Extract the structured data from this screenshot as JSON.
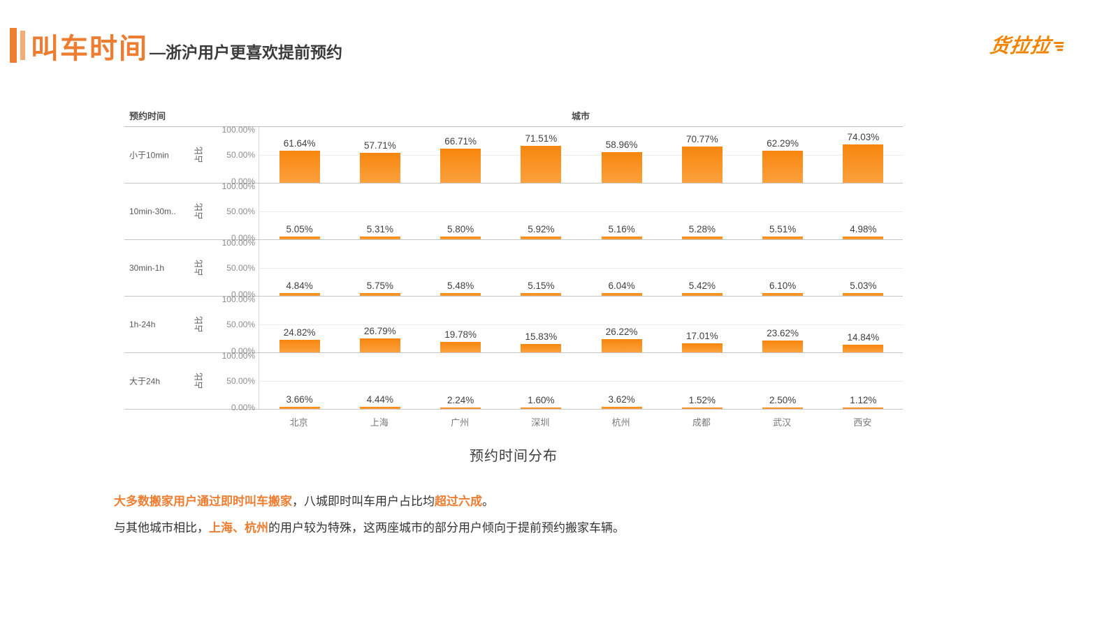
{
  "header": {
    "title": "叫车时间",
    "subtitle": "—浙沪用户更喜欢提前预约",
    "logo": "货拉拉",
    "accent_color": "#ED7D31"
  },
  "chart_data": {
    "type": "bar",
    "title": "预约时间分布",
    "row_axis_title": "预约时间",
    "col_axis_title": "城市",
    "value_axis_label": "占比",
    "y_ticks": [
      "100.00%",
      "50.00%",
      "0.00%"
    ],
    "ylim": [
      0,
      100
    ],
    "grid": "50% gridline per panel",
    "legend": "none",
    "bar_color": "#FA8C1E",
    "categories": [
      "北京",
      "上海",
      "广州",
      "深圳",
      "杭州",
      "成都",
      "武汉",
      "西安"
    ],
    "series": [
      {
        "name": "小于10min",
        "values": [
          61.64,
          57.71,
          66.71,
          71.51,
          58.96,
          70.77,
          62.29,
          74.03
        ]
      },
      {
        "name": "10min-30m..",
        "values": [
          5.05,
          5.31,
          5.8,
          5.92,
          5.16,
          5.28,
          5.51,
          4.98
        ]
      },
      {
        "name": "30min-1h",
        "values": [
          4.84,
          5.75,
          5.48,
          5.15,
          6.04,
          5.42,
          6.1,
          5.03
        ]
      },
      {
        "name": "1h-24h",
        "values": [
          24.82,
          26.79,
          19.78,
          15.83,
          26.22,
          17.01,
          23.62,
          14.84
        ]
      },
      {
        "name": "大于24h",
        "values": [
          3.66,
          4.44,
          2.24,
          1.6,
          3.62,
          1.52,
          2.5,
          1.12
        ]
      }
    ]
  },
  "notes": {
    "line1": [
      {
        "text": "大多数搬家用户通过即时叫车搬家",
        "highlight": true
      },
      {
        "text": "，八城即时叫车用户占比均",
        "highlight": false
      },
      {
        "text": "超过六成",
        "highlight": true
      },
      {
        "text": "。",
        "highlight": false
      }
    ],
    "line2": [
      {
        "text": "与其他城市相比，",
        "highlight": false
      },
      {
        "text": "上海、杭州",
        "highlight": true
      },
      {
        "text": "的用户较为特殊，这两座城市的部分用户倾向于提前预约搬家车辆。",
        "highlight": false
      }
    ]
  }
}
